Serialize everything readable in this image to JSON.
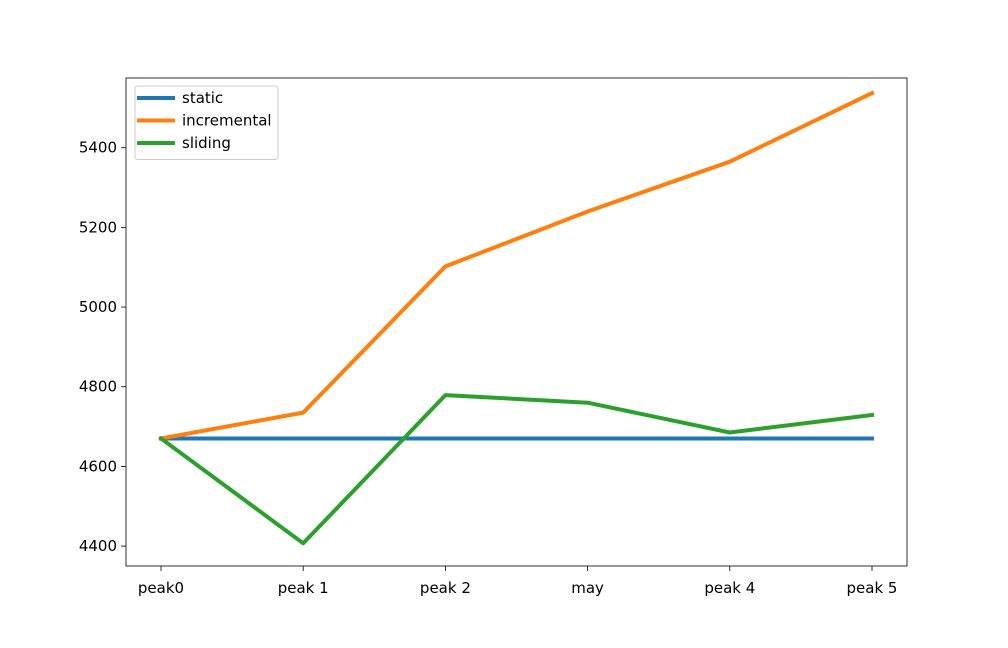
{
  "chart_data": {
    "type": "line",
    "title": "",
    "xlabel": "",
    "ylabel": "",
    "categories": [
      "peak0",
      "peak 1",
      "peak 2",
      "may",
      "peak 4",
      "peak 5"
    ],
    "ylim": [
      4350,
      5575
    ],
    "yticks": [
      4400,
      4600,
      4800,
      5000,
      5200,
      5400
    ],
    "grid": false,
    "legend_position": "upper-left",
    "series": [
      {
        "name": "static",
        "color": "#1f77b4",
        "values": [
          4670,
          4670,
          4670,
          4670,
          4670,
          4670
        ]
      },
      {
        "name": "incremental",
        "color": "#ff7f0e",
        "values": [
          4670,
          4735,
          5102,
          5240,
          5365,
          5537
        ]
      },
      {
        "name": "sliding",
        "color": "#2ca02c",
        "values": [
          4670,
          4407,
          4779,
          4760,
          4685,
          4729
        ]
      }
    ]
  }
}
